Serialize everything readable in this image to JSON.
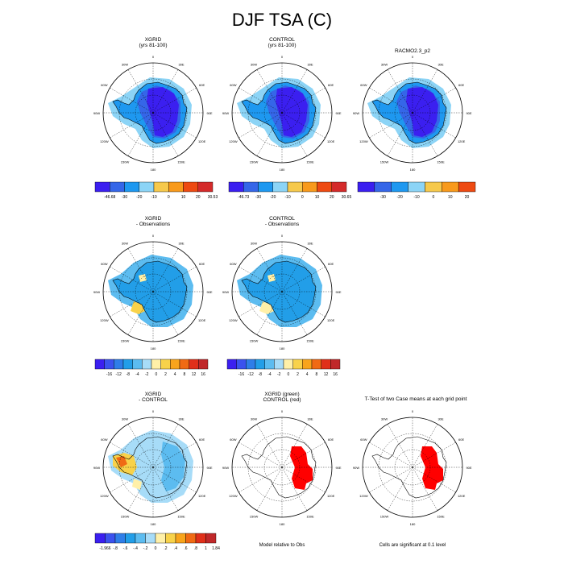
{
  "title": "DJF TSA (C)",
  "panels": [
    {
      "id": "xgrid",
      "title": [
        "XGRID",
        "(yrs 81-100)"
      ],
      "scheme": "abs"
    },
    {
      "id": "control",
      "title": [
        "CONTROL",
        "(yrs 81-100)"
      ],
      "scheme": "abs"
    },
    {
      "id": "racmo",
      "title": [
        "RACMO2.3_p2"
      ],
      "scheme": "abs"
    },
    {
      "id": "xgrid_obs",
      "title": [
        "XGRID",
        "- Observations"
      ],
      "scheme": "bias"
    },
    {
      "id": "control_obs",
      "title": [
        "CONTROL",
        "- Observations"
      ],
      "scheme": "bias2"
    },
    {
      "id": "xgrid_control",
      "title": [
        "XGRID",
        "- CONTROL"
      ],
      "scheme": "diff"
    },
    {
      "id": "green_red",
      "title": [
        "XGRID (green)",
        "CONTROL (red)"
      ],
      "scheme": "sig"
    },
    {
      "id": "ttest",
      "title": [
        "T-Test of two Case means at each grid point"
      ],
      "scheme": "sig"
    }
  ],
  "lon_labels": [
    "0",
    "30E",
    "60E",
    "90E",
    "120E",
    "150E",
    "180",
    "150W",
    "120W",
    "90W",
    "60W",
    "30W"
  ],
  "colorbars": [
    {
      "id": "cb-xgrid",
      "labels": [
        "-46.68",
        "-30",
        "-20",
        "-10",
        "0",
        "10",
        "20",
        "30.53"
      ],
      "colors": [
        "#3b1ff0",
        "#3566e8",
        "#1e98f0",
        "#8cd4f6",
        "#f6c94c",
        "#f89a1c",
        "#ee4a12",
        "#d42a2a"
      ]
    },
    {
      "id": "cb-control",
      "labels": [
        "-46.73",
        "-30",
        "-20",
        "-10",
        "0",
        "10",
        "20",
        "30.65"
      ],
      "colors": [
        "#3b1ff0",
        "#3566e8",
        "#1e98f0",
        "#8cd4f6",
        "#f6c94c",
        "#f89a1c",
        "#ee4a12",
        "#d42a2a"
      ]
    },
    {
      "id": "cb-racmo",
      "labels": [
        "-30",
        "-20",
        "-10",
        "0",
        "10",
        "20"
      ],
      "colors": [
        "#3b1ff0",
        "#3566e8",
        "#1e98f0",
        "#8cd4f6",
        "#f6c94c",
        "#f89a1c",
        "#ee4a12"
      ]
    },
    {
      "id": "cb-xgrid-obs",
      "labels": [
        "-16",
        "-12",
        "-8",
        "-4",
        "-2",
        "0",
        "2",
        "4",
        "8",
        "12",
        "16"
      ],
      "colors": [
        "#3b1ff0",
        "#3b52ee",
        "#2f7ee8",
        "#229ee8",
        "#5cbcf0",
        "#a7dcf8",
        "#fff0a8",
        "#f8d24a",
        "#f8a41c",
        "#f06a14",
        "#e0301a",
        "#c0282a"
      ]
    },
    {
      "id": "cb-control-obs",
      "labels": [
        "-16",
        "-12",
        "-8",
        "-4",
        "-2",
        "0",
        "2",
        "4",
        "8",
        "12",
        "16"
      ],
      "colors": [
        "#3b1ff0",
        "#3b52ee",
        "#2f7ee8",
        "#229ee8",
        "#5cbcf0",
        "#a7dcf8",
        "#fff0a8",
        "#f8d24a",
        "#f8a41c",
        "#f06a14",
        "#e0301a",
        "#c0282a"
      ]
    },
    {
      "id": "cb-xgrid-control",
      "labels": [
        "-1.966",
        "-.8",
        "-.6",
        "-.4",
        "-.2",
        "0",
        ".2",
        ".4",
        ".6",
        ".8",
        "1",
        "1.84"
      ],
      "colors": [
        "#3b1ff0",
        "#3b52ee",
        "#2f7ee8",
        "#229ee8",
        "#5cbcf0",
        "#a7dcf8",
        "#fff0a8",
        "#f8d24a",
        "#f8a41c",
        "#f06a14",
        "#e0301a",
        "#c0282a"
      ]
    }
  ],
  "footers": {
    "model_vs_obs": "Model relative to Obs",
    "significance": "Cells are significant at 0.1 level"
  },
  "chart_data": {
    "type": "heatmap",
    "title": "DJF TSA (C)",
    "projection": "south polar stereographic",
    "variable": "surface air temperature (TSA), DJF mean",
    "units": "C",
    "panels": [
      {
        "name": "XGRID (yrs 81-100)",
        "min": -46.68,
        "max": 30.53
      },
      {
        "name": "CONTROL (yrs 81-100)",
        "min": -46.73,
        "max": 30.65
      },
      {
        "name": "RACMO2.3_p2",
        "levels": [
          -30,
          -20,
          -10,
          0,
          10,
          20
        ]
      },
      {
        "name": "XGRID - Observations",
        "levels": [
          -16,
          -12,
          -8,
          -4,
          -2,
          0,
          2,
          4,
          8,
          12,
          16
        ]
      },
      {
        "name": "CONTROL - Observations",
        "levels": [
          -16,
          -12,
          -8,
          -4,
          -2,
          0,
          2,
          4,
          8,
          12,
          16
        ]
      },
      {
        "name": "XGRID - CONTROL",
        "min": -1.966,
        "max": 1.84,
        "levels": [
          -0.8,
          -0.6,
          -0.4,
          -0.2,
          0,
          0.2,
          0.4,
          0.6,
          0.8,
          1
        ]
      },
      {
        "name": "Model relative to Obs: XGRID (green) / CONTROL (red)",
        "note": "red cells over East Antarctica"
      },
      {
        "name": "T-Test of two Case means at each grid point",
        "note": "Cells are significant at 0.1 level"
      }
    ]
  }
}
